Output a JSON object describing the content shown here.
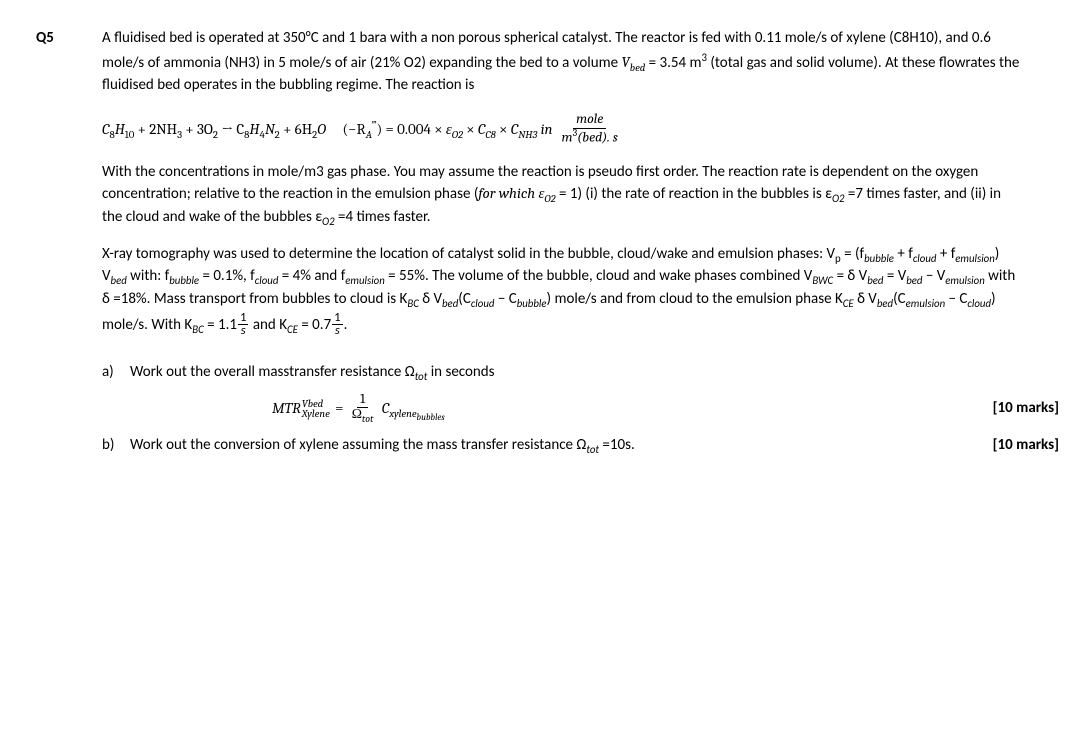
{
  "question_number": "Q5",
  "intro_p1_a": "A fluidised bed is operated at 350°C and 1 bara with a non porous spherical catalyst. The reactor is fed with 0.11 mole/s of xylene (C8H10), and 0.6 mole/s of ammonia (NH3) in 5 mole/s of air (21% O2) expanding the bed to a volume ",
  "intro_p1_b": " = 3.54 m",
  "intro_p1_c": " (total gas and solid volume). At these flowrates the fluidised bed operates in the bubbling regime. The reaction is",
  "Vbed_sym_V": "V",
  "Vbed_sym_bed": "bed",
  "cubed": "3",
  "rxn_lhs": "C",
  "rxn_8": "8",
  "rxn_H": "H",
  "rxn_10": "10",
  "rxn_plus2NH3": " + 2NH",
  "rxn_3": "3",
  "rxn_plus3O2": " + 3O",
  "rxn_2": "2",
  "rxn_arrow": " → C",
  "rxn_4": "4",
  "rxn_N": "N",
  "rxn_plus6H2O": " + 6H",
  "rxn_O": "O",
  "rate_open": "(−R",
  "rate_A": "A",
  "rate_ppp": "‴",
  "rate_close": ") = 0.004 × ",
  "eps": "ε",
  "eps_O2": "O2",
  "times": " × ",
  "C_sym": "C",
  "C_C8": "C8",
  "C_NH3": "NH3",
  "in_word": "  in",
  "frac_num": "mole",
  "frac_den_a": "m",
  "frac_den_b": "(bed). s",
  "p2_a": "With the concentrations in mole/m3 gas phase. You may assume the reaction is pseudo first order. The reaction rate is dependent on the oxygen concentration; relative to the reaction in the emulsion phase (",
  "p2_forwhich": "for which ε",
  "p2_b": " = 1) (i) the rate of reaction in the bubbles is ε",
  "p2_c": " =7 times faster, and (ii) in the cloud and wake of the bubbles ε",
  "p2_d": " =4 times faster.",
  "p3_a": "X-ray tomography was used to determine the location of catalyst solid in the bubble, cloud/wake and emulsion phases: V",
  "p3_p": "p",
  "p3_b": " = (f",
  "p3_bubble": "bubble",
  "p3_plus1": " + f",
  "p3_cloud": "cloud",
  "p3_emulsion": "emulsion",
  "p3_c": ") V",
  "p3_bed": "bed",
  "p3_with": "  with: f",
  "p3_d": " = 0.1%,  f",
  "p3_e": " = 4% and  f",
  "p3_f": " = 55%. The volume of the bubble, cloud and wake phases combined V",
  "p3_BWC": "BWC",
  "p3_g": " = δ V",
  "p3_h": " = V",
  "p3_i": " − V",
  "p3_j": "  with δ =18%. Mass transport from bubbles to cloud is K",
  "p3_BC": "BC",
  "p3_k": " δ V",
  "p3_l": "(C",
  "p3_m": " − C",
  "p3_n": ") mole/s  and from cloud to the emulsion phase K",
  "p3_CE": "CE",
  "p3_o": ") mole/s. With K",
  "p3_q": " = 1.1",
  "p3_r": " and K",
  "p3_s": " = 0.7",
  "one": "1",
  "s_letter": "s",
  "period": ".",
  "part_a_label": "a)",
  "part_a_text": "Work out the overall masstransfer resistance Ω",
  "tot": "tot",
  "part_a_text2": " in seconds",
  "part_a_marks": "[10 marks]",
  "eqp_MTR": "MTR",
  "eqp_Vbed": "Vbed",
  "eqp_Xylene": "Xylene",
  "eqp_eq": "  = ",
  "eqp_Omega": "Ω",
  "eqp_Cxyl": " C",
  "eqp_xylene": "xylene",
  "eqp_bubbles": "bubbles",
  "part_b_label": "b)",
  "part_b_text_a": "Work out the conversion of xylene assuming the mass transfer resistance Ω",
  "part_b_text_b": " =10s.",
  "part_b_marks": "[10 marks]"
}
